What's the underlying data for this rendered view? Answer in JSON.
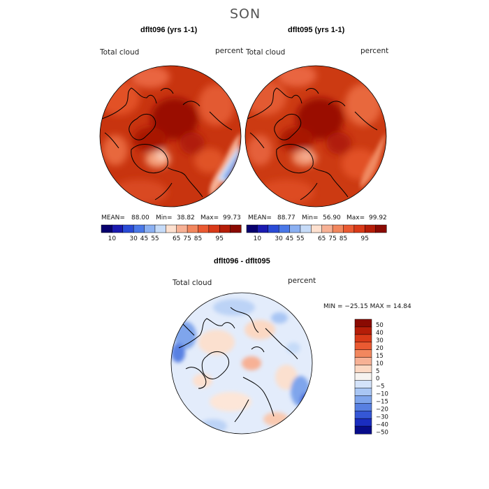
{
  "figure": {
    "season": "SON"
  },
  "chart_data": [
    {
      "type": "heatmap",
      "projection": "north-polar-stereographic",
      "title": "dflt096 (yrs 1-1)",
      "variable": "Total cloud",
      "units": "percent",
      "stats": {
        "mean_label": "MEAN=",
        "mean": "88.00",
        "min_label": "Min=",
        "min": "38.82",
        "max_label": "Max=",
        "max": "99.73"
      },
      "colorbar_ticks": [
        "10",
        "30",
        "45",
        "55",
        "65",
        "75",
        "85",
        "95"
      ]
    },
    {
      "type": "heatmap",
      "projection": "north-polar-stereographic",
      "title": "dflt095 (yrs 1-1)",
      "variable": "Total cloud",
      "units": "percent",
      "stats": {
        "mean_label": "MEAN=",
        "mean": "88.77",
        "min_label": "Min=",
        "min": "56.90",
        "max_label": "Max=",
        "max": "99.92"
      },
      "colorbar_ticks": [
        "10",
        "30",
        "45",
        "55",
        "65",
        "75",
        "85",
        "95"
      ]
    },
    {
      "type": "heatmap",
      "projection": "north-polar-stereographic",
      "title": "dflt096 - dflt095",
      "variable": "Total cloud",
      "units": "percent",
      "range_text": "MIN = −25.15 MAX =  14.84",
      "min": -25.15,
      "max": 14.84,
      "colorbar_levels": [
        "50",
        "40",
        "30",
        "20",
        "15",
        "10",
        "5",
        "0",
        "−5",
        "−10",
        "−15",
        "−20",
        "−30",
        "−40",
        "−50"
      ]
    }
  ],
  "colors": {
    "abs_scale": [
      "#08006e",
      "#1a1ab0",
      "#2a4bd6",
      "#4a78e8",
      "#8bb0f2",
      "#c6dbf8",
      "#fde0cf",
      "#f7b195",
      "#f2875e",
      "#ea5a32",
      "#d93a18",
      "#b51d08",
      "#8a0a02"
    ],
    "diff_scale": [
      "#8a0a02",
      "#b51d08",
      "#d93a18",
      "#ea5a32",
      "#f2875e",
      "#f7b195",
      "#fcd8c3",
      "#f6f3f0",
      "#d4e3fa",
      "#a9c6f4",
      "#7fa5ec",
      "#5880e2",
      "#3557d6",
      "#1a2dc0",
      "#070c8a"
    ],
    "land_outline": "#000000"
  }
}
